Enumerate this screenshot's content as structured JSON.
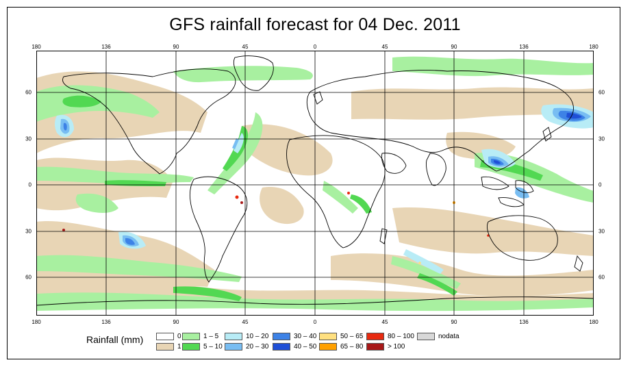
{
  "title": "GFS rainfall forecast for 04 Dec. 2011",
  "axes": {
    "x_ticks": [
      "180",
      "136",
      "90",
      "45",
      "0",
      "45",
      "90",
      "136",
      "180"
    ],
    "y_ticks": [
      "60",
      "30",
      "0",
      "30",
      "60"
    ]
  },
  "legend": {
    "title": "Rainfall (mm)",
    "items": [
      {
        "label": "0",
        "color": "#ffffff"
      },
      {
        "label": "1",
        "color": "#e8d5b5"
      },
      {
        "label": "1 – 5",
        "color": "#a8f0a0"
      },
      {
        "label": "5 – 10",
        "color": "#52d852"
      },
      {
        "label": "10 – 20",
        "color": "#b8ecf6"
      },
      {
        "label": "20 – 30",
        "color": "#78bdf2"
      },
      {
        "label": "30 – 40",
        "color": "#3d82e6"
      },
      {
        "label": "40 – 50",
        "color": "#1f4fd6"
      },
      {
        "label": "50 – 65",
        "color": "#ffe080"
      },
      {
        "label": "65 – 80",
        "color": "#ffa000"
      },
      {
        "label": "80 – 100",
        "color": "#e82a10"
      },
      {
        "label": "> 100",
        "color": "#a81818"
      },
      {
        "label": "nodata",
        "color": "#d8d8d8"
      }
    ]
  }
}
